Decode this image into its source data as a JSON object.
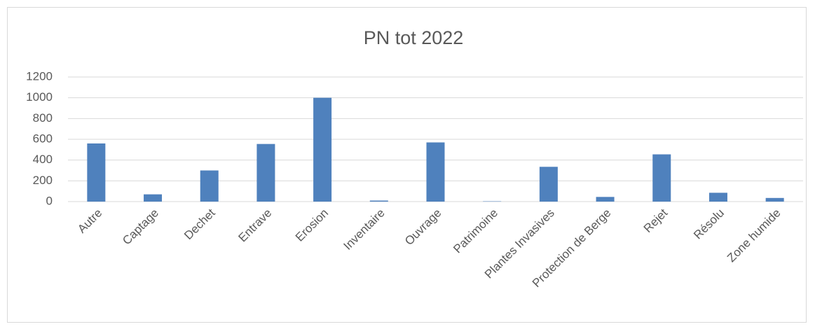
{
  "chart_data": {
    "type": "bar",
    "title": "PN tot 2022",
    "categories": [
      "Autre",
      "Captage",
      "Dechet",
      "Entrave",
      "Erosion",
      "Inventaire",
      "Ouvrage",
      "Patrimoine",
      "Plantes Invasives",
      "Protection de Berge",
      "Rejet",
      "Résolu",
      "Zone humide"
    ],
    "values": [
      560,
      70,
      300,
      555,
      1000,
      10,
      570,
      3,
      335,
      45,
      455,
      85,
      35
    ],
    "color": "#4f81bd",
    "ylim": [
      0,
      1200
    ],
    "yticks": [
      0,
      200,
      400,
      600,
      800,
      1000,
      1200
    ],
    "grid": true
  }
}
